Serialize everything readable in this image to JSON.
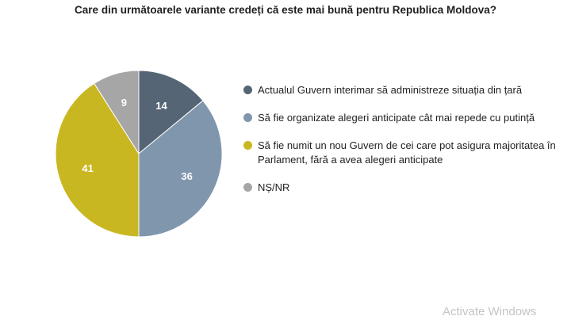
{
  "chart_data": {
    "type": "pie",
    "title": "Care din următoarele variante credeți că este mai bună pentru Republica Moldova?",
    "legend_position": "right",
    "slices": [
      {
        "label": "Actualul Guvern interimar să administreze situația din țară",
        "value": 14,
        "color": "#556575"
      },
      {
        "label": "Să fie organizate alegeri anticipate cât mai repede cu putință",
        "value": 36,
        "color": "#8096ad"
      },
      {
        "label": "Să fie numit un nou Guvern de cei care pot asigura majoritatea în Parlament, fără a avea alegeri anticipate",
        "value": 41,
        "color": "#c9b722"
      },
      {
        "label": "NȘ/NR",
        "value": 9,
        "color": "#a6a6a6"
      }
    ]
  },
  "watermark": "Activate Windows"
}
